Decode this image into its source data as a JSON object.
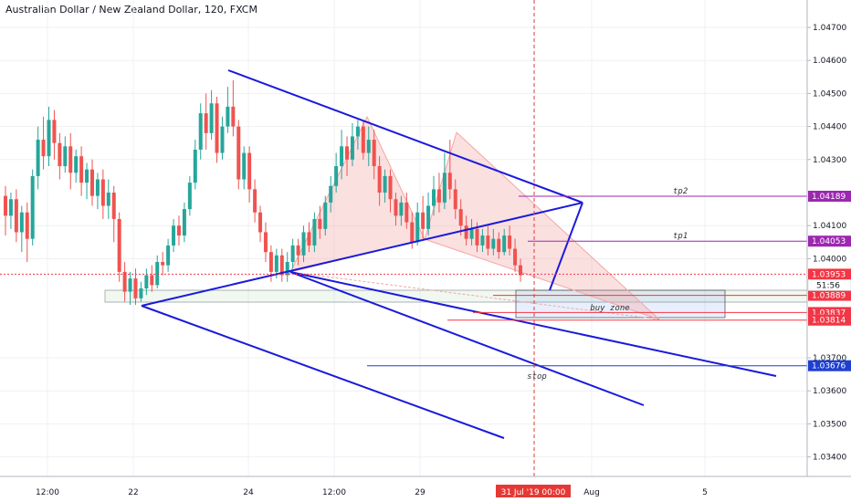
{
  "header": {
    "title": "Australian Dollar / New Zealand Dollar, 120, FXCM"
  },
  "colors": {
    "up": "#26a69a",
    "down": "#ef5350",
    "channel": "#1a1adb",
    "pattern": "#f4a6a6",
    "tp": "#9c27b0",
    "stop": "#1e3fd1",
    "level": "#f23645",
    "marker": "#e53935"
  },
  "chart_data": {
    "type": "candlestick",
    "title": "Australian Dollar / New Zealand Dollar, 120, FXCM",
    "ylim": [
      1.033,
      1.0475
    ],
    "y_ticks": [
      {
        "value": 1.047,
        "label": "1.04700"
      },
      {
        "value": 1.046,
        "label": "1.04600"
      },
      {
        "value": 1.045,
        "label": "1.04500"
      },
      {
        "value": 1.044,
        "label": "1.04400"
      },
      {
        "value": 1.043,
        "label": "1.04300"
      },
      {
        "value": 1.041,
        "label": "1.04100"
      },
      {
        "value": 1.04,
        "label": "1.04000"
      },
      {
        "value": 1.037,
        "label": "1.03700"
      },
      {
        "value": 1.036,
        "label": "1.03600"
      },
      {
        "value": 1.035,
        "label": "1.03500"
      },
      {
        "value": 1.034,
        "label": "1.03400"
      }
    ],
    "x_ticks": [
      "12:00",
      "22",
      "24",
      "12:00",
      "29",
      "Aug",
      "5"
    ],
    "cursor_date_label": "31 Jul '19   00:00",
    "price_labels": [
      {
        "value": 1.04189,
        "label": "1.04189",
        "kind": "tp"
      },
      {
        "value": 1.04053,
        "label": "1.04053",
        "kind": "tp"
      },
      {
        "value": 1.03953,
        "label": "1.03953",
        "kind": "current"
      },
      {
        "value": 1.03889,
        "label": "1.03889",
        "kind": "level"
      },
      {
        "value": 1.03837,
        "label": "1.03837",
        "kind": "level"
      },
      {
        "value": 1.03814,
        "label": "1.03814",
        "kind": "level"
      },
      {
        "value": 1.03676,
        "label": "1.03676",
        "kind": "stop"
      }
    ],
    "countdown": "51:56",
    "annotations": {
      "tp2": "tp2",
      "tp1": "tp1",
      "buy_zone": "buy zone",
      "stop": "stop"
    },
    "candles": [
      [
        1.0419,
        1.0413,
        1.0422,
        1.0407
      ],
      [
        1.0413,
        1.0418,
        1.042,
        1.0409
      ],
      [
        1.0418,
        1.0408,
        1.0421,
        1.0405
      ],
      [
        1.0408,
        1.0414,
        1.0416,
        1.0402
      ],
      [
        1.0414,
        1.0406,
        1.0417,
        1.0399
      ],
      [
        1.0406,
        1.0425,
        1.0427,
        1.0404
      ],
      [
        1.0425,
        1.0436,
        1.044,
        1.0421
      ],
      [
        1.0436,
        1.0431,
        1.0443,
        1.0427
      ],
      [
        1.0431,
        1.0442,
        1.0446,
        1.0428
      ],
      [
        1.0442,
        1.0435,
        1.0445,
        1.043
      ],
      [
        1.0435,
        1.0428,
        1.0438,
        1.0424
      ],
      [
        1.0428,
        1.0434,
        1.0437,
        1.0426
      ],
      [
        1.0434,
        1.0426,
        1.0438,
        1.0421
      ],
      [
        1.0426,
        1.0431,
        1.0433,
        1.0423
      ],
      [
        1.0431,
        1.0423,
        1.0434,
        1.0419
      ],
      [
        1.0423,
        1.0427,
        1.0429,
        1.0418
      ],
      [
        1.0427,
        1.0419,
        1.043,
        1.0416
      ],
      [
        1.0419,
        1.0424,
        1.0426,
        1.0415
      ],
      [
        1.0424,
        1.0416,
        1.0427,
        1.0412
      ],
      [
        1.0416,
        1.042,
        1.0424,
        1.0412
      ],
      [
        1.042,
        1.0412,
        1.0422,
        1.0405
      ],
      [
        1.0412,
        1.0396,
        1.0414,
        1.0393
      ],
      [
        1.0396,
        1.039,
        1.0399,
        1.0387
      ],
      [
        1.039,
        1.0394,
        1.0396,
        1.0386
      ],
      [
        1.0394,
        1.0388,
        1.0397,
        1.0386
      ],
      [
        1.0388,
        1.0391,
        1.0393,
        1.0387
      ],
      [
        1.0391,
        1.0395,
        1.0397,
        1.0389
      ],
      [
        1.0395,
        1.0392,
        1.0398,
        1.039
      ],
      [
        1.0392,
        1.0399,
        1.0401,
        1.0391
      ],
      [
        1.0399,
        1.0398,
        1.0402,
        1.0395
      ],
      [
        1.0398,
        1.0404,
        1.0406,
        1.0396
      ],
      [
        1.0404,
        1.041,
        1.0412,
        1.0402
      ],
      [
        1.041,
        1.0407,
        1.0413,
        1.0404
      ],
      [
        1.0407,
        1.0415,
        1.0417,
        1.0405
      ],
      [
        1.0415,
        1.0423,
        1.0425,
        1.0413
      ],
      [
        1.0423,
        1.0433,
        1.0436,
        1.0421
      ],
      [
        1.0433,
        1.0444,
        1.0447,
        1.043
      ],
      [
        1.0444,
        1.0438,
        1.045,
        1.0433
      ],
      [
        1.0438,
        1.0447,
        1.0451,
        1.0436
      ],
      [
        1.0447,
        1.0432,
        1.0449,
        1.0429
      ],
      [
        1.0432,
        1.044,
        1.0443,
        1.043
      ],
      [
        1.044,
        1.0446,
        1.0452,
        1.0438
      ],
      [
        1.0446,
        1.044,
        1.0454,
        1.0437
      ],
      [
        1.044,
        1.0424,
        1.0442,
        1.0421
      ],
      [
        1.0424,
        1.0432,
        1.0434,
        1.0421
      ],
      [
        1.0432,
        1.0421,
        1.0434,
        1.0417
      ],
      [
        1.0421,
        1.0414,
        1.0424,
        1.0411
      ],
      [
        1.0414,
        1.0408,
        1.0416,
        1.0405
      ],
      [
        1.0408,
        1.0402,
        1.0411,
        1.0399
      ],
      [
        1.0402,
        1.0396,
        1.0404,
        1.0393
      ],
      [
        1.0396,
        1.0401,
        1.0403,
        1.0394
      ],
      [
        1.0401,
        1.0395,
        1.0403,
        1.0393
      ],
      [
        1.0395,
        1.0399,
        1.0402,
        1.0393
      ],
      [
        1.0399,
        1.0404,
        1.0406,
        1.0397
      ],
      [
        1.0404,
        1.0401,
        1.0406,
        1.0398
      ],
      [
        1.0401,
        1.0408,
        1.041,
        1.0399
      ],
      [
        1.0408,
        1.0404,
        1.0411,
        1.0402
      ],
      [
        1.0404,
        1.0412,
        1.0414,
        1.0402
      ],
      [
        1.0412,
        1.0409,
        1.0416,
        1.0406
      ],
      [
        1.0409,
        1.0417,
        1.0419,
        1.0407
      ],
      [
        1.0417,
        1.0422,
        1.0425,
        1.0414
      ],
      [
        1.0422,
        1.0428,
        1.0432,
        1.042
      ],
      [
        1.0428,
        1.0434,
        1.0439,
        1.0424
      ],
      [
        1.0434,
        1.043,
        1.0437,
        1.0425
      ],
      [
        1.043,
        1.0437,
        1.0441,
        1.0428
      ],
      [
        1.0437,
        1.044,
        1.0442,
        1.0433
      ],
      [
        1.044,
        1.0432,
        1.0442,
        1.043
      ],
      [
        1.0432,
        1.0436,
        1.044,
        1.0428
      ],
      [
        1.0436,
        1.0428,
        1.0439,
        1.0424
      ],
      [
        1.0428,
        1.042,
        1.0431,
        1.0416
      ],
      [
        1.042,
        1.0425,
        1.0427,
        1.0417
      ],
      [
        1.0425,
        1.0418,
        1.0427,
        1.0414
      ],
      [
        1.0418,
        1.0413,
        1.042,
        1.041
      ],
      [
        1.0413,
        1.0417,
        1.0419,
        1.041
      ],
      [
        1.0417,
        1.0411,
        1.042,
        1.0409
      ],
      [
        1.0411,
        1.0405,
        1.0414,
        1.0403
      ],
      [
        1.0405,
        1.0414,
        1.0417,
        1.0404
      ],
      [
        1.0414,
        1.0409,
        1.0419,
        1.0406
      ],
      [
        1.0409,
        1.0416,
        1.042,
        1.0407
      ],
      [
        1.0416,
        1.0421,
        1.0425,
        1.0413
      ],
      [
        1.0421,
        1.0417,
        1.0426,
        1.0414
      ],
      [
        1.0417,
        1.0426,
        1.0432,
        1.0415
      ],
      [
        1.0426,
        1.0421,
        1.0436,
        1.0418
      ],
      [
        1.0421,
        1.0415,
        1.0424,
        1.0412
      ],
      [
        1.0415,
        1.041,
        1.0418,
        1.0407
      ],
      [
        1.041,
        1.0406,
        1.0413,
        1.0404
      ],
      [
        1.0406,
        1.0409,
        1.0412,
        1.0404
      ],
      [
        1.0409,
        1.0404,
        1.0411,
        1.0402
      ],
      [
        1.0404,
        1.0407,
        1.0409,
        1.0402
      ],
      [
        1.0407,
        1.0403,
        1.041,
        1.0401
      ],
      [
        1.0403,
        1.0406,
        1.0409,
        1.0401
      ],
      [
        1.0406,
        1.0402,
        1.0408,
        1.04
      ],
      [
        1.0402,
        1.0407,
        1.0409,
        1.0401
      ],
      [
        1.0407,
        1.0403,
        1.041,
        1.0401
      ],
      [
        1.0403,
        1.0398,
        1.0406,
        1.0396
      ],
      [
        1.0398,
        1.0395,
        1.04,
        1.0393
      ]
    ]
  }
}
